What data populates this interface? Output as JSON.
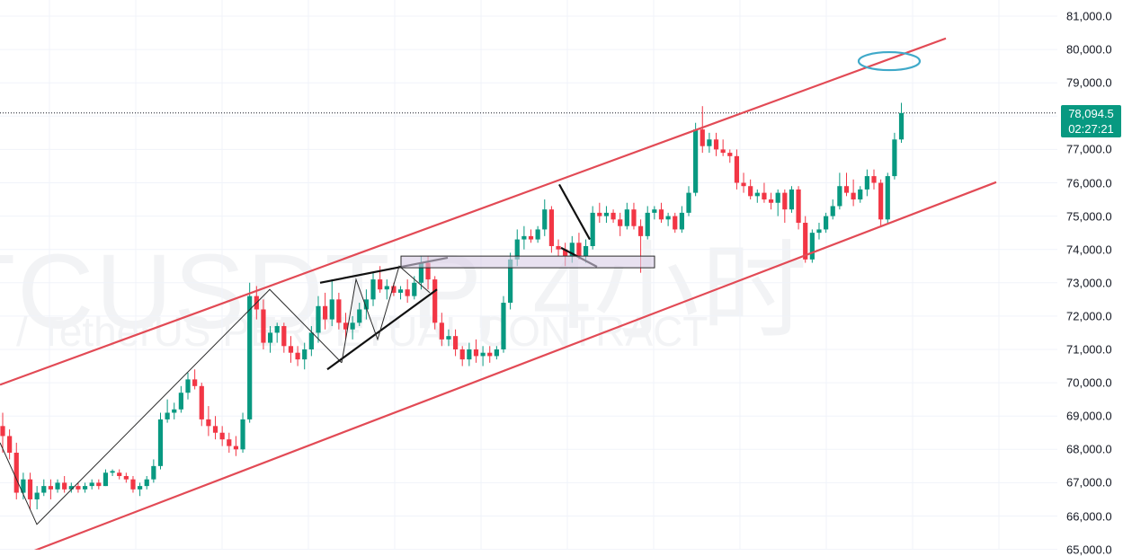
{
  "watermark": {
    "symbol": "TCUSDT.P, 4小时",
    "description": "/ TetherUS PERPETUAL CONTRACT"
  },
  "last_price": {
    "value": "78,094.5",
    "countdown": "02:27:21",
    "color": "#089981"
  },
  "colors": {
    "up": "#089981",
    "down": "#f23645",
    "channel": "#e24a55",
    "ellipse": "#3fa9c9",
    "box_fill": "#d9cde6"
  },
  "chart_data": {
    "type": "candlestick",
    "ylim": [
      64900,
      81500
    ],
    "y_ticks": [
      "81,000.0",
      "80,000.0",
      "79,000.0",
      "78,000.0",
      "77,000.0",
      "76,000.0",
      "75,000.0",
      "74,000.0",
      "73,000.0",
      "72,000.0",
      "71,000.0",
      "70,000.0",
      "69,000.0",
      "68,000.0",
      "67,000.0",
      "66,000.0",
      "65,000.0"
    ],
    "grid": true,
    "candles": [
      [
        68700,
        69100,
        67900,
        68400
      ],
      [
        68400,
        68600,
        67700,
        67900
      ],
      [
        67900,
        68200,
        66500,
        66700
      ],
      [
        66700,
        67300,
        66500,
        67100
      ],
      [
        67100,
        67300,
        66200,
        66500
      ],
      [
        66500,
        66900,
        66200,
        66700
      ],
      [
        66700,
        67100,
        66600,
        66900
      ],
      [
        66900,
        67100,
        66500,
        66800
      ],
      [
        66800,
        67100,
        66700,
        67000
      ],
      [
        67000,
        67200,
        66700,
        66800
      ],
      [
        66800,
        67000,
        66700,
        66900
      ],
      [
        66900,
        67000,
        66700,
        66800
      ],
      [
        66800,
        67000,
        66700,
        66900
      ],
      [
        66900,
        67100,
        66800,
        67000
      ],
      [
        67000,
        67100,
        66800,
        66900
      ],
      [
        66900,
        67400,
        66900,
        67300
      ],
      [
        67300,
        67400,
        67200,
        67350
      ],
      [
        67300,
        67400,
        67100,
        67200
      ],
      [
        67200,
        67300,
        67000,
        67100
      ],
      [
        67100,
        67200,
        66700,
        66800
      ],
      [
        66800,
        67000,
        66600,
        66900
      ],
      [
        66900,
        67200,
        66800,
        67100
      ],
      [
        67100,
        67700,
        67000,
        67500
      ],
      [
        67500,
        69100,
        67400,
        68900
      ],
      [
        68900,
        69500,
        68800,
        69100
      ],
      [
        69100,
        69400,
        68900,
        69200
      ],
      [
        69200,
        69900,
        69100,
        69700
      ],
      [
        69700,
        70300,
        69500,
        70100
      ],
      [
        70100,
        70400,
        69800,
        69900
      ],
      [
        69900,
        70000,
        68700,
        68900
      ],
      [
        68900,
        69300,
        68400,
        68700
      ],
      [
        68700,
        69000,
        68300,
        68500
      ],
      [
        68500,
        68700,
        68100,
        68300
      ],
      [
        68300,
        68500,
        67900,
        68100
      ],
      [
        68100,
        68400,
        67800,
        68000
      ],
      [
        68000,
        69100,
        67900,
        68900
      ],
      [
        68900,
        73000,
        68800,
        72600
      ],
      [
        72600,
        72900,
        71900,
        72200
      ],
      [
        72200,
        72500,
        71000,
        71200
      ],
      [
        71200,
        71700,
        70900,
        71500
      ],
      [
        71500,
        71800,
        71200,
        71700
      ],
      [
        71700,
        71800,
        70900,
        71100
      ],
      [
        71100,
        71400,
        70600,
        70900
      ],
      [
        70900,
        71100,
        70500,
        70700
      ],
      [
        70700,
        71200,
        70400,
        71000
      ],
      [
        71000,
        71700,
        70800,
        71500
      ],
      [
        71500,
        72600,
        71200,
        72300
      ],
      [
        72300,
        72700,
        71600,
        71900
      ],
      [
        71900,
        73100,
        71700,
        72500
      ],
      [
        72500,
        72700,
        71600,
        71800
      ],
      [
        71800,
        72100,
        71300,
        71600
      ],
      [
        71600,
        72000,
        71300,
        71800
      ],
      [
        71800,
        72400,
        71700,
        72200
      ],
      [
        72200,
        72800,
        71900,
        72500
      ],
      [
        72500,
        73300,
        72300,
        73100
      ],
      [
        73100,
        73500,
        72700,
        72800
      ],
      [
        72800,
        73100,
        72500,
        72900
      ],
      [
        72900,
        73000,
        72600,
        72700
      ],
      [
        72700,
        72900,
        72500,
        72800
      ],
      [
        72800,
        73100,
        72400,
        72600
      ],
      [
        72600,
        73200,
        72500,
        73000
      ],
      [
        73000,
        73800,
        72800,
        73600
      ],
      [
        73600,
        73800,
        72800,
        73100
      ],
      [
        73100,
        73200,
        71600,
        71800
      ],
      [
        71800,
        72100,
        71100,
        71300
      ],
      [
        71300,
        71600,
        71100,
        71400
      ],
      [
        71400,
        71600,
        70800,
        71000
      ],
      [
        71000,
        71100,
        70500,
        70700
      ],
      [
        70700,
        71200,
        70500,
        71000
      ],
      [
        71000,
        71300,
        70600,
        70800
      ],
      [
        70800,
        71100,
        70500,
        70900
      ],
      [
        70900,
        71100,
        70600,
        70800
      ],
      [
        70800,
        71100,
        70700,
        71000
      ],
      [
        71000,
        72600,
        70900,
        72400
      ],
      [
        72400,
        73900,
        72200,
        73700
      ],
      [
        73700,
        74600,
        73500,
        74300
      ],
      [
        74300,
        74700,
        74000,
        74400
      ],
      [
        74400,
        74600,
        74200,
        74300
      ],
      [
        74300,
        74700,
        74200,
        74600
      ],
      [
        74600,
        75500,
        74400,
        75200
      ],
      [
        75200,
        75300,
        73900,
        74100
      ],
      [
        74100,
        74300,
        73800,
        74000
      ],
      [
        74000,
        74200,
        73500,
        73800
      ],
      [
        73800,
        74400,
        73600,
        74200
      ],
      [
        74200,
        74500,
        73700,
        73800
      ],
      [
        73800,
        74300,
        73600,
        74100
      ],
      [
        74100,
        75300,
        74000,
        75100
      ],
      [
        75100,
        75400,
        74800,
        75000
      ],
      [
        75000,
        75300,
        74800,
        75100
      ],
      [
        75100,
        75200,
        74800,
        74900
      ],
      [
        74900,
        75100,
        74400,
        74700
      ],
      [
        74700,
        75400,
        74600,
        75200
      ],
      [
        75200,
        75400,
        74600,
        74700
      ],
      [
        74700,
        74900,
        73300,
        74400
      ],
      [
        74400,
        75300,
        74300,
        75100
      ],
      [
        75100,
        75300,
        74900,
        75200
      ],
      [
        75200,
        75400,
        74800,
        74900
      ],
      [
        74900,
        75100,
        74700,
        75000
      ],
      [
        75000,
        75100,
        74500,
        74600
      ],
      [
        74600,
        75300,
        74500,
        75100
      ],
      [
        75100,
        75900,
        75000,
        75700
      ],
      [
        75700,
        77800,
        75600,
        77600
      ],
      [
        77600,
        78300,
        76900,
        77100
      ],
      [
        77100,
        77500,
        76900,
        77300
      ],
      [
        77300,
        77500,
        76800,
        77000
      ],
      [
        77000,
        77300,
        76800,
        76900
      ],
      [
        76900,
        77000,
        76600,
        76800
      ],
      [
        76800,
        77000,
        75800,
        76000
      ],
      [
        76000,
        76300,
        75700,
        75900
      ],
      [
        75900,
        76100,
        75500,
        75600
      ],
      [
        75600,
        75800,
        75400,
        75700
      ],
      [
        75700,
        76000,
        75400,
        75500
      ],
      [
        75500,
        75700,
        75200,
        75400
      ],
      [
        75400,
        75800,
        75000,
        75700
      ],
      [
        75700,
        75800,
        74800,
        75200
      ],
      [
        75200,
        75900,
        75100,
        75800
      ],
      [
        75800,
        75900,
        74600,
        74800
      ],
      [
        74800,
        75000,
        73600,
        73700
      ],
      [
        73700,
        74600,
        73600,
        74500
      ],
      [
        74500,
        74800,
        74300,
        74600
      ],
      [
        74600,
        75100,
        74500,
        75000
      ],
      [
        75000,
        75500,
        74900,
        75300
      ],
      [
        75300,
        76300,
        75200,
        75900
      ],
      [
        75900,
        76300,
        75600,
        75700
      ],
      [
        75700,
        76100,
        75300,
        75500
      ],
      [
        75500,
        75900,
        75400,
        75800
      ],
      [
        75800,
        76400,
        75600,
        76200
      ],
      [
        76200,
        76400,
        75800,
        76000
      ],
      [
        76000,
        76100,
        74700,
        74900
      ],
      [
        74900,
        76300,
        74800,
        76200
      ],
      [
        76200,
        77500,
        76100,
        77300
      ],
      [
        77300,
        78400,
        77200,
        78094
      ]
    ],
    "annotations": [
      {
        "type": "channel-line",
        "from": [
          0,
          69938
        ],
        "to": [
          1052,
          80333
        ]
      },
      {
        "type": "channel-line",
        "from": [
          36,
          64938
        ],
        "to": [
          1108,
          76018
        ]
      },
      {
        "type": "zigzag",
        "points": [
          [
            0,
            68200
          ],
          [
            41,
            65750
          ],
          [
            300,
            72800
          ],
          [
            380,
            70600
          ]
        ]
      },
      {
        "type": "trend",
        "from": [
          356,
          73000
        ],
        "to": [
          498,
          73750
        ]
      },
      {
        "type": "trend",
        "from": [
          364,
          70400
        ],
        "to": [
          486,
          72800
        ]
      },
      {
        "type": "zigzag",
        "points": [
          [
            380,
            70600
          ],
          [
            396,
            73100
          ],
          [
            420,
            71300
          ],
          [
            444,
            73500
          ],
          [
            478,
            72700
          ]
        ]
      },
      {
        "type": "trend",
        "from": [
          622,
          75950
        ],
        "to": [
          656,
          74300
        ]
      },
      {
        "type": "trend",
        "from": [
          624,
          74050
        ],
        "to": [
          664,
          73480
        ]
      },
      {
        "type": "zone",
        "from": [
          446,
          73800
        ],
        "to": [
          728,
          73450
        ]
      },
      {
        "type": "ellipse",
        "center": [
          989,
          79650
        ]
      }
    ]
  }
}
